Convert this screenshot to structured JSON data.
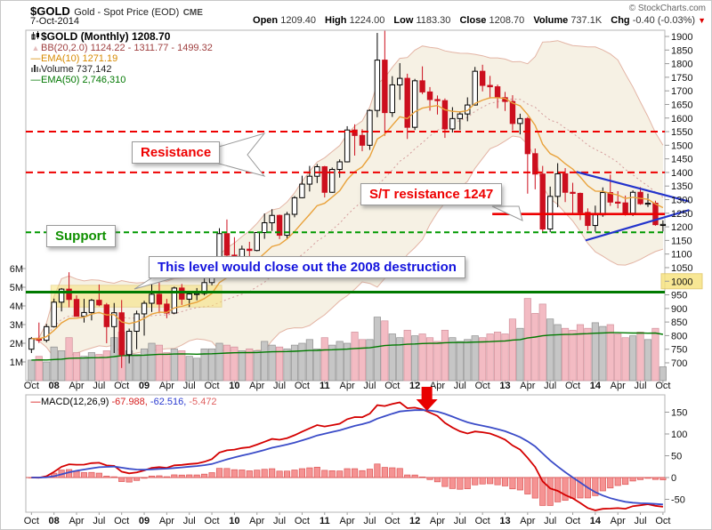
{
  "header": {
    "symbol": "$GOLD",
    "name": "Gold - Spot Price (EOD)",
    "exchange": "CME",
    "date": "7-Oct-2014",
    "copyright": "© StockCharts.com",
    "quote": {
      "o_l": "Open",
      "o_v": "1209.40",
      "h_l": "High",
      "h_v": "1224.00",
      "l_l": "Low",
      "l_v": "1183.30",
      "c_l": "Close",
      "c_v": "1208.70",
      "v_l": "Volume",
      "v_v": "737.1K",
      "chg_l": "Chg",
      "chg_v": "-0.40 (-0.03%)",
      "arrow": "▼"
    }
  },
  "legend": {
    "gold": "$GOLD (Monthly) 1208.70",
    "bb": "BB(20,2.0) 1124.22 - 1311.77 - 1499.32",
    "bb_icon": "▲",
    "ema10": "EMA(10) 1271.19",
    "volume": "Volume 737,142",
    "ema50": "EMA(50) 2,746,310",
    "dash": "—",
    "macd_name": "MACD(12,26,9)",
    "macd_v1": "-67.988,",
    "macd_v2": "-62.516,",
    "macd_v3": "-5.472"
  },
  "annotations": {
    "resistance": "Resistance",
    "st_resistance": "S/T resistance 1247",
    "support": "Support",
    "closeout": "This level would close out the 2008 destruction"
  },
  "axes": {
    "price": [
      "1900",
      "1850",
      "1800",
      "1750",
      "1700",
      "1650",
      "1600",
      "1550",
      "1500",
      "1450",
      "1400",
      "1350",
      "1300",
      "1250",
      "1200",
      "1150",
      "1100",
      "1050",
      "1000",
      "950",
      "900",
      "850",
      "800",
      "750",
      "700"
    ],
    "highlighted_price": "1000",
    "volume": [
      "6M",
      "5M",
      "4M",
      "3M",
      "2M",
      "1M"
    ],
    "macd": [
      "150",
      "100",
      "50",
      "0",
      "-50"
    ],
    "x": [
      {
        "i": 0,
        "t": "Oct"
      },
      {
        "i": 3,
        "t": "08",
        "b": 1
      },
      {
        "i": 6,
        "t": "Apr"
      },
      {
        "i": 9,
        "t": "Jul"
      },
      {
        "i": 12,
        "t": "Oct"
      },
      {
        "i": 15,
        "t": "09",
        "b": 1
      },
      {
        "i": 18,
        "t": "Apr"
      },
      {
        "i": 21,
        "t": "Jul"
      },
      {
        "i": 24,
        "t": "Oct"
      },
      {
        "i": 27,
        "t": "10",
        "b": 1
      },
      {
        "i": 30,
        "t": "Apr"
      },
      {
        "i": 33,
        "t": "Jul"
      },
      {
        "i": 36,
        "t": "Oct"
      },
      {
        "i": 39,
        "t": "11",
        "b": 1
      },
      {
        "i": 42,
        "t": "Apr"
      },
      {
        "i": 45,
        "t": "Jul"
      },
      {
        "i": 48,
        "t": "Oct"
      },
      {
        "i": 51,
        "t": "12",
        "b": 1
      },
      {
        "i": 54,
        "t": "Apr"
      },
      {
        "i": 57,
        "t": "Jul"
      },
      {
        "i": 60,
        "t": "Oct"
      },
      {
        "i": 63,
        "t": "13",
        "b": 1
      },
      {
        "i": 66,
        "t": "Apr"
      },
      {
        "i": 69,
        "t": "Jul"
      },
      {
        "i": 72,
        "t": "Oct"
      },
      {
        "i": 75,
        "t": "14",
        "b": 1
      },
      {
        "i": 78,
        "t": "Apr"
      },
      {
        "i": 81,
        "t": "Jul"
      },
      {
        "i": 84,
        "t": "Oct"
      }
    ]
  },
  "colors": {
    "candle_down": "#cc0f1e",
    "candle_up_fill": "#ffffff",
    "candle_up_stroke": "#000000",
    "volume_up": "#c4c4c4",
    "volume_up_stroke": "#8a8a8a",
    "volume_down": "#f3b8c0",
    "volume_down_stroke": "#cf8d98",
    "bb_fill": "#f6f1e4",
    "bb_line": "#e3b4a4",
    "bb_mid": "#d49c9c",
    "ema10": "#e9a23b",
    "green": "#007a00",
    "red_line": "#ee0000",
    "green_dash": "#009900",
    "blue": "#2233cc",
    "macd_line": "#d40000",
    "macd_signal": "#3b4cc8",
    "hist_fill": "#f59393",
    "hist_stroke": "#dd5555",
    "yellow_fill": "#f7e27a",
    "yellow_stroke": "#dec35a",
    "arrow_red": "#e80000",
    "axis_text": "#111111",
    "border": "#b5b5b5"
  },
  "chart_data": {
    "type": "candlestick",
    "symbol": "$GOLD",
    "timeframe": "monthly",
    "range": "Oct-2007 to Oct-2014",
    "ylim": [
      700,
      1900
    ],
    "macd_axis_range": [
      -50,
      150
    ],
    "indicators": {
      "bollinger": "20,2.0",
      "ema_price": 10,
      "ema_volume": 50,
      "macd": "12,26,9"
    },
    "ohlc": [
      [
        750,
        795,
        736,
        789
      ],
      [
        789,
        848,
        773,
        783
      ],
      [
        783,
        843,
        775,
        833
      ],
      [
        833,
        936,
        830,
        923
      ],
      [
        923,
        975,
        889,
        971
      ],
      [
        971,
        1033,
        904,
        933
      ],
      [
        933,
        948,
        871,
        871
      ],
      [
        871,
        935,
        848,
        885
      ],
      [
        885,
        935,
        856,
        930
      ],
      [
        930,
        988,
        908,
        913
      ],
      [
        913,
        920,
        772,
        833
      ],
      [
        833,
        920,
        736,
        884
      ],
      [
        884,
        931,
        681,
        730
      ],
      [
        730,
        826,
        698,
        816
      ],
      [
        816,
        892,
        750,
        880
      ],
      [
        880,
        928,
        800,
        919
      ],
      [
        919,
        1006,
        887,
        952
      ],
      [
        952,
        995,
        882,
        916
      ],
      [
        916,
        935,
        864,
        883
      ],
      [
        883,
        980,
        879,
        975
      ],
      [
        975,
        990,
        913,
        934
      ],
      [
        934,
        960,
        905,
        953
      ],
      [
        953,
        975,
        930,
        955
      ],
      [
        955,
        1024,
        948,
        995
      ],
      [
        995,
        1070,
        985,
        1040
      ],
      [
        1040,
        1195,
        1025,
        1175
      ],
      [
        1175,
        1227,
        1075,
        1096
      ],
      [
        1096,
        1162,
        1072,
        1078
      ],
      [
        1078,
        1131,
        1044,
        1118
      ],
      [
        1118,
        1145,
        1085,
        1113
      ],
      [
        1113,
        1181,
        1110,
        1179
      ],
      [
        1179,
        1249,
        1156,
        1215
      ],
      [
        1215,
        1265,
        1185,
        1242
      ],
      [
        1242,
        1245,
        1155,
        1169
      ],
      [
        1169,
        1255,
        1157,
        1246
      ],
      [
        1246,
        1313,
        1235,
        1307
      ],
      [
        1307,
        1388,
        1305,
        1357
      ],
      [
        1357,
        1424,
        1330,
        1386
      ],
      [
        1386,
        1431,
        1361,
        1421
      ],
      [
        1421,
        1424,
        1308,
        1327
      ],
      [
        1327,
        1418,
        1325,
        1411
      ],
      [
        1411,
        1448,
        1381,
        1439
      ],
      [
        1439,
        1570,
        1437,
        1556
      ],
      [
        1556,
        1577,
        1462,
        1536
      ],
      [
        1536,
        1559,
        1478,
        1500
      ],
      [
        1500,
        1632,
        1483,
        1628
      ],
      [
        1628,
        1913,
        1603,
        1813
      ],
      [
        1813,
        1921,
        1535,
        1620
      ],
      [
        1620,
        1754,
        1604,
        1722
      ],
      [
        1722,
        1802,
        1667,
        1746
      ],
      [
        1746,
        1763,
        1523,
        1566
      ],
      [
        1566,
        1744,
        1556,
        1737
      ],
      [
        1737,
        1790,
        1688,
        1696
      ],
      [
        1696,
        1714,
        1627,
        1668
      ],
      [
        1668,
        1683,
        1613,
        1664
      ],
      [
        1664,
        1672,
        1527,
        1560
      ],
      [
        1560,
        1640,
        1547,
        1598
      ],
      [
        1598,
        1625,
        1556,
        1615
      ],
      [
        1615,
        1676,
        1588,
        1648
      ],
      [
        1648,
        1788,
        1646,
        1772
      ],
      [
        1772,
        1796,
        1698,
        1720
      ],
      [
        1720,
        1755,
        1672,
        1715
      ],
      [
        1715,
        1723,
        1636,
        1675
      ],
      [
        1675,
        1696,
        1626,
        1661
      ],
      [
        1661,
        1684,
        1555,
        1580
      ],
      [
        1580,
        1616,
        1540,
        1598
      ],
      [
        1598,
        1604,
        1322,
        1469
      ],
      [
        1469,
        1488,
        1338,
        1394
      ],
      [
        1394,
        1424,
        1180,
        1192
      ],
      [
        1192,
        1348,
        1180,
        1312
      ],
      [
        1312,
        1434,
        1272,
        1395
      ],
      [
        1395,
        1416,
        1291,
        1327
      ],
      [
        1327,
        1362,
        1251,
        1323
      ],
      [
        1323,
        1326,
        1225,
        1253
      ],
      [
        1253,
        1268,
        1186,
        1205
      ],
      [
        1205,
        1278,
        1182,
        1244
      ],
      [
        1244,
        1345,
        1237,
        1326
      ],
      [
        1326,
        1392,
        1277,
        1291
      ],
      [
        1291,
        1331,
        1268,
        1288
      ],
      [
        1288,
        1315,
        1241,
        1250
      ],
      [
        1250,
        1334,
        1240,
        1327
      ],
      [
        1327,
        1346,
        1281,
        1285
      ],
      [
        1285,
        1322,
        1273,
        1287
      ],
      [
        1287,
        1296,
        1204,
        1208
      ],
      [
        1209,
        1224,
        1183,
        1209
      ]
    ],
    "volume_millions": [
      1.1,
      1.3,
      1.0,
      1.8,
      1.6,
      2.3,
      1.5,
      1.3,
      1.5,
      1.4,
      1.6,
      2.3,
      2.6,
      1.6,
      1.4,
      1.7,
      2.0,
      1.9,
      1.5,
      1.7,
      1.6,
      1.3,
      1.2,
      1.7,
      1.7,
      2.0,
      1.9,
      1.8,
      1.6,
      1.7,
      1.6,
      2.1,
      1.9,
      1.8,
      1.7,
      1.9,
      2.0,
      2.2,
      1.7,
      2.3,
      1.9,
      2.1,
      2.0,
      2.6,
      2.2,
      2.2,
      3.4,
      3.2,
      2.5,
      2.3,
      2.7,
      2.4,
      2.5,
      2.3,
      2.1,
      2.7,
      2.3,
      2.1,
      2.2,
      2.4,
      2.3,
      2.5,
      2.6,
      2.5,
      3.3,
      2.8,
      4.4,
      3.6,
      4.1,
      3.3,
      3.0,
      2.8,
      2.7,
      3.0,
      2.8,
      3.1,
      2.9,
      3.0,
      2.5,
      2.3,
      2.4,
      2.6,
      2.2,
      2.8,
      0.74
    ],
    "levels": {
      "resistance_dashed": [
        1550,
        1400
      ],
      "support_dashed": 1180,
      "st_resistance_solid": {
        "price": 1247,
        "start_index": 61.3
      },
      "closeout_solid_green": 960,
      "yellow_zone": {
        "i0": 2.6,
        "i1": 25.3,
        "p0": 985,
        "p1": 905
      },
      "wedge_blue": [
        [
          72.5,
          1402,
          87.5,
          1293
        ],
        [
          73.7,
          1150,
          87.5,
          1262
        ]
      ],
      "macd_arrow_index": 52.6
    }
  }
}
